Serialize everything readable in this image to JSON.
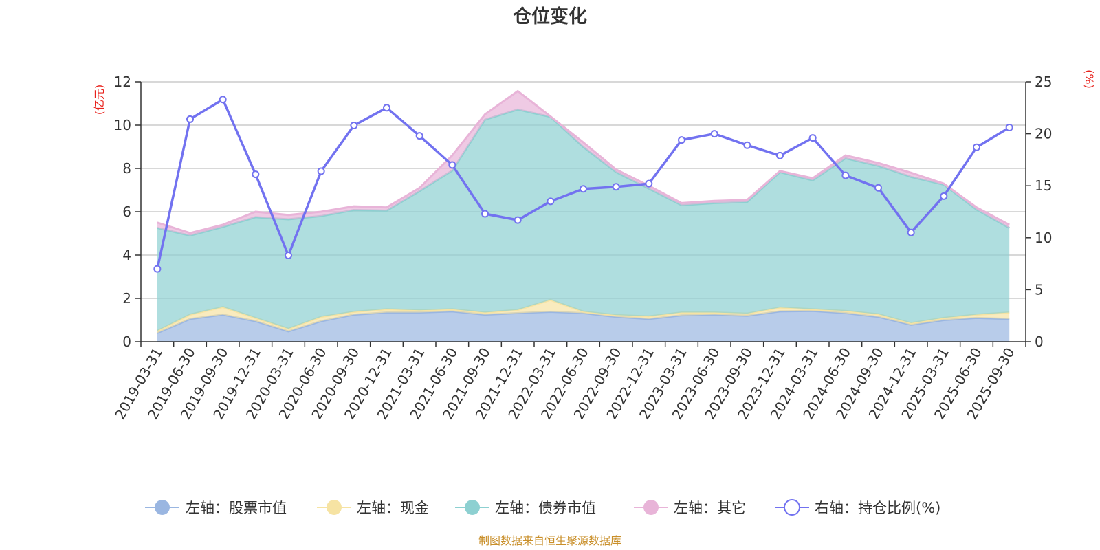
{
  "chart_data": {
    "type": "area",
    "title": "仓位变化",
    "left_axis_unit": "(亿元)",
    "right_axis_unit": "(%)",
    "left_ylim": [
      0,
      12
    ],
    "left_ticks": [
      0,
      2,
      4,
      6,
      8,
      10,
      12
    ],
    "right_ylim": [
      0,
      25
    ],
    "right_ticks": [
      0,
      5,
      10,
      15,
      20,
      25
    ],
    "categories": [
      "2019-03-31",
      "2019-06-30",
      "2019-09-30",
      "2019-12-31",
      "2020-03-31",
      "2020-06-30",
      "2020-09-30",
      "2020-12-31",
      "2021-03-31",
      "2021-06-30",
      "2021-09-30",
      "2021-12-31",
      "2022-03-31",
      "2022-06-30",
      "2022-09-30",
      "2022-12-31",
      "2023-03-31",
      "2023-06-30",
      "2023-09-30",
      "2023-12-31",
      "2024-03-31",
      "2024-06-30",
      "2024-09-30",
      "2024-12-31",
      "2025-03-31",
      "2025-06-30",
      "2025-09-30"
    ],
    "series": [
      {
        "name": "左轴：股票市值",
        "axis": "left",
        "stack": true,
        "color": "#9ab6e1",
        "values": [
          0.4,
          1.05,
          1.25,
          0.95,
          0.48,
          0.95,
          1.25,
          1.35,
          1.35,
          1.4,
          1.25,
          1.32,
          1.38,
          1.32,
          1.15,
          1.05,
          1.22,
          1.25,
          1.2,
          1.4,
          1.42,
          1.32,
          1.15,
          0.78,
          1.0,
          1.1,
          1.05
        ]
      },
      {
        "name": "左轴：现金",
        "axis": "left",
        "stack": true,
        "color": "#f6e3a3",
        "values": [
          0.1,
          0.2,
          0.35,
          0.15,
          0.12,
          0.2,
          0.13,
          0.15,
          0.1,
          0.1,
          0.1,
          0.15,
          0.55,
          0.07,
          0.08,
          0.12,
          0.13,
          0.1,
          0.1,
          0.18,
          0.08,
          0.1,
          0.12,
          0.08,
          0.1,
          0.15,
          0.3
        ]
      },
      {
        "name": "左轴：债券市值",
        "axis": "left",
        "stack": true,
        "color": "#8dd0d1",
        "values": [
          4.75,
          3.65,
          3.7,
          4.65,
          5.05,
          4.65,
          4.7,
          4.55,
          5.5,
          6.4,
          8.9,
          9.25,
          8.45,
          7.6,
          6.6,
          5.9,
          4.95,
          5.05,
          5.15,
          6.25,
          5.95,
          7.05,
          6.85,
          6.75,
          6.15,
          4.85,
          3.9
        ]
      },
      {
        "name": "左轴：其它",
        "axis": "left",
        "stack": true,
        "color": "#e8b4d8",
        "values": [
          0.25,
          0.12,
          0.1,
          0.25,
          0.2,
          0.2,
          0.17,
          0.15,
          0.15,
          0.7,
          0.25,
          0.85,
          0.02,
          0.21,
          0.12,
          0.13,
          0.1,
          0.1,
          0.1,
          0.05,
          0.1,
          0.13,
          0.13,
          0.19,
          0.05,
          0.1,
          0.15
        ]
      },
      {
        "name": "右轴：持仓比例(%)",
        "axis": "right",
        "stack": false,
        "color": "#7272f0",
        "values": [
          7.0,
          21.4,
          23.3,
          16.1,
          8.3,
          16.4,
          20.8,
          22.5,
          19.8,
          17.0,
          12.3,
          11.7,
          13.5,
          14.7,
          14.9,
          15.2,
          19.4,
          20.0,
          18.9,
          17.9,
          19.6,
          16.0,
          14.8,
          10.5,
          14.0,
          18.7,
          20.6
        ]
      }
    ],
    "grid": true,
    "legend_position": "bottom-center"
  },
  "footer": {
    "source": "制图数据来自恒生聚源数据库"
  },
  "colors": {
    "unit_label": "#e8221c",
    "source_text": "#c98f2a",
    "axis_line": "#333333",
    "grid_line": "#cccccc"
  }
}
